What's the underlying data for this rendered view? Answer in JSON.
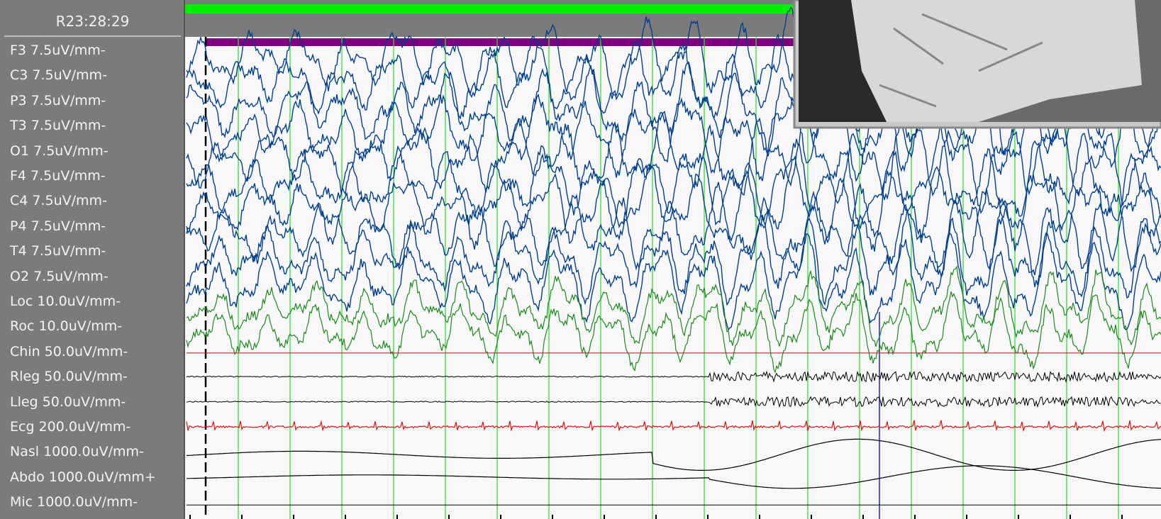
{
  "header": {
    "time": "R23:28:29"
  },
  "channels": [
    "F3 7.5uV/mm-",
    "C3 7.5uV/mm-",
    "P3 7.5uV/mm-",
    "T3 7.5uV/mm-",
    "O1 7.5uV/mm-",
    "F4 7.5uV/mm-",
    "C4 7.5uV/mm-",
    "P4 7.5uV/mm-",
    "T4 7.5uV/mm-",
    "O2 7.5uV/mm-",
    "Loc 10.0uV/mm-",
    "Roc 10.0uV/mm-",
    "Chin 50.0uV/mm-",
    "Rleg 50.0uV/mm-",
    "Lleg 50.0uV/mm-",
    "Ecg 200.0uV/mm-",
    "Nasl 1000.0uV/mm-",
    "Abdo 1000.0uV/mm+",
    "Mic 1000.0uV/mm-"
  ]
}
